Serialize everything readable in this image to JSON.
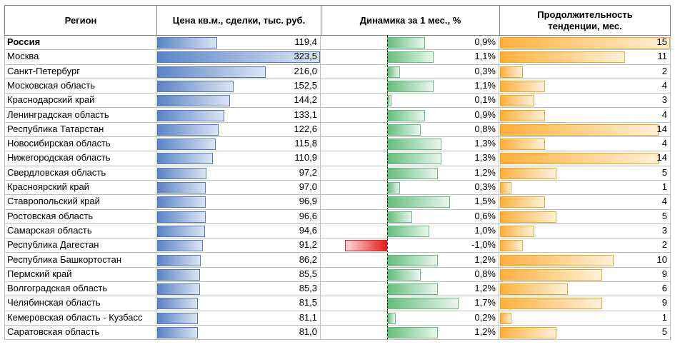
{
  "chart_data": {
    "type": "table",
    "columns": [
      "Регион",
      "Цена кв.м., сделки, тыс. руб.",
      "Динамика за 1 мес., %",
      "Продолжительность тенденции, мес."
    ],
    "rows": [
      {
        "region": "Россия",
        "price": 119.4,
        "price_label": "119,4",
        "change": 0.9,
        "change_label": "0,9%",
        "duration": 15,
        "duration_label": "15",
        "bold": true
      },
      {
        "region": "Москва",
        "price": 323.5,
        "price_label": "323,5",
        "change": 1.1,
        "change_label": "1,1%",
        "duration": 11,
        "duration_label": "11"
      },
      {
        "region": "Санкт-Петербург",
        "price": 216.0,
        "price_label": "216,0",
        "change": 0.3,
        "change_label": "0,3%",
        "duration": 2,
        "duration_label": "2"
      },
      {
        "region": "Московская область",
        "price": 152.5,
        "price_label": "152,5",
        "change": 1.1,
        "change_label": "1,1%",
        "duration": 4,
        "duration_label": "4"
      },
      {
        "region": "Краснодарский край",
        "price": 144.2,
        "price_label": "144,2",
        "change": 0.1,
        "change_label": "0,1%",
        "duration": 3,
        "duration_label": "3"
      },
      {
        "region": "Ленинградская область",
        "price": 133.1,
        "price_label": "133,1",
        "change": 0.9,
        "change_label": "0,9%",
        "duration": 4,
        "duration_label": "4"
      },
      {
        "region": "Республика Татарстан",
        "price": 122.6,
        "price_label": "122,6",
        "change": 0.8,
        "change_label": "0,8%",
        "duration": 14,
        "duration_label": "14"
      },
      {
        "region": "Новосибирская область",
        "price": 115.8,
        "price_label": "115,8",
        "change": 1.3,
        "change_label": "1,3%",
        "duration": 4,
        "duration_label": "4"
      },
      {
        "region": "Нижегородская область",
        "price": 110.9,
        "price_label": "110,9",
        "change": 1.3,
        "change_label": "1,3%",
        "duration": 14,
        "duration_label": "14"
      },
      {
        "region": "Свердловская область",
        "price": 97.2,
        "price_label": "97,2",
        "change": 1.2,
        "change_label": "1,2%",
        "duration": 5,
        "duration_label": "5"
      },
      {
        "region": "Красноярский край",
        "price": 97.0,
        "price_label": "97,0",
        "change": 0.3,
        "change_label": "0,3%",
        "duration": 1,
        "duration_label": "1"
      },
      {
        "region": "Ставропольский край",
        "price": 96.9,
        "price_label": "96,9",
        "change": 1.5,
        "change_label": "1,5%",
        "duration": 4,
        "duration_label": "4"
      },
      {
        "region": "Ростовская область",
        "price": 96.6,
        "price_label": "96,6",
        "change": 0.6,
        "change_label": "0,6%",
        "duration": 5,
        "duration_label": "5"
      },
      {
        "region": "Самарская область",
        "price": 94.6,
        "price_label": "94,6",
        "change": 1.0,
        "change_label": "1,0%",
        "duration": 3,
        "duration_label": "3"
      },
      {
        "region": "Республика Дагестан",
        "price": 91.2,
        "price_label": "91,2",
        "change": -1.0,
        "change_label": "-1,0%",
        "duration": 2,
        "duration_label": "2"
      },
      {
        "region": "Республика Башкортостан",
        "price": 86.2,
        "price_label": "86,2",
        "change": 1.2,
        "change_label": "1,2%",
        "duration": 10,
        "duration_label": "10"
      },
      {
        "region": "Пермский край",
        "price": 85.5,
        "price_label": "85,5",
        "change": 0.8,
        "change_label": "0,8%",
        "duration": 9,
        "duration_label": "9"
      },
      {
        "region": "Волгоградская область",
        "price": 85.3,
        "price_label": "85,3",
        "change": 1.2,
        "change_label": "1,2%",
        "duration": 6,
        "duration_label": "6"
      },
      {
        "region": "Челябинская область",
        "price": 81.5,
        "price_label": "81,5",
        "change": 1.7,
        "change_label": "1,7%",
        "duration": 9,
        "duration_label": "9"
      },
      {
        "region": "Кемеровская область - Кузбасс",
        "price": 81.1,
        "price_label": "81,1",
        "change": 0.2,
        "change_label": "0,2%",
        "duration": 1,
        "duration_label": "1"
      },
      {
        "region": "Саратовская область",
        "price": 81.0,
        "price_label": "81,0",
        "change": 1.2,
        "change_label": "1,2%",
        "duration": 5,
        "duration_label": "5"
      }
    ],
    "colors": {
      "price_bar": "#5b83c6",
      "positive_bar": "#63be7b",
      "negative_bar": "#e61c1c",
      "duration_bar": "#ffa31a"
    }
  }
}
